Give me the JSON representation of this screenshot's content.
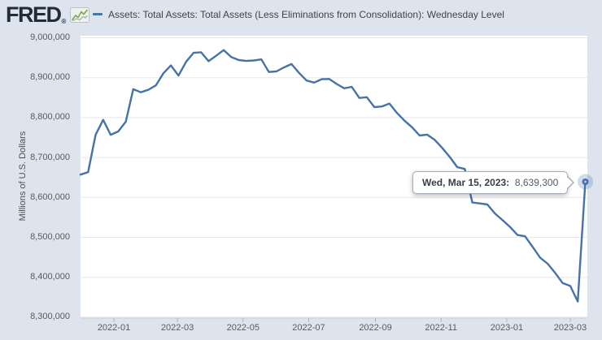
{
  "header": {
    "logo_text": "FRED",
    "registered_mark": "®",
    "series_title": "Assets: Total Assets: Total Assets (Less Eliminations from Consolidation): Wednesday Level"
  },
  "colors": {
    "background": "#dde4ee",
    "plot_background": "#ffffff",
    "series_line": "#4572a7",
    "gridline": "#e8e8e8",
    "axis_line": "#c9ced6",
    "tick": "#aeb6c0",
    "axis_text": "#565b63",
    "tooltip_border": "#a3adb8",
    "marker_halo": "rgba(69,114,167,0.25)",
    "logo_icon_green": "#7aab4e",
    "logo_icon_gray": "#9aa7b5"
  },
  "y_axis": {
    "title": "Millions of U.S. Dollars",
    "ticks": [
      "9,000,000",
      "8,900,000",
      "8,800,000",
      "8,700,000",
      "8,600,000",
      "8,500,000",
      "8,400,000",
      "8,300,000"
    ]
  },
  "x_axis": {
    "ticks": [
      "2022-01",
      "2022-03",
      "2022-05",
      "2022-07",
      "2022-09",
      "2022-11",
      "2023-01",
      "2023-03"
    ]
  },
  "tooltip": {
    "date_label": "Wed, Mar 15, 2023:",
    "value_label": "8,639,300"
  },
  "chart_data": {
    "type": "line",
    "title": "Assets: Total Assets: Total Assets (Less Eliminations from Consolidation): Wednesday Level",
    "xlabel": "",
    "ylabel": "Millions of U.S. Dollars",
    "ylim": [
      8300000,
      9000000
    ],
    "grid": true,
    "legend_position": "top",
    "frequency": "weekly, Wednesday level",
    "highlighted_point": {
      "date": "2023-03-15",
      "value": 8639300,
      "label": "Wed, Mar 15, 2023: 8,639,300"
    },
    "x": [
      "2021-12-01",
      "2021-12-08",
      "2021-12-15",
      "2021-12-22",
      "2021-12-29",
      "2022-01-05",
      "2022-01-12",
      "2022-01-19",
      "2022-01-26",
      "2022-02-02",
      "2022-02-09",
      "2022-02-16",
      "2022-02-23",
      "2022-03-02",
      "2022-03-09",
      "2022-03-16",
      "2022-03-23",
      "2022-03-30",
      "2022-04-06",
      "2022-04-13",
      "2022-04-20",
      "2022-04-27",
      "2022-05-04",
      "2022-05-11",
      "2022-05-18",
      "2022-05-25",
      "2022-06-01",
      "2022-06-08",
      "2022-06-15",
      "2022-06-22",
      "2022-06-29",
      "2022-07-06",
      "2022-07-13",
      "2022-07-20",
      "2022-07-27",
      "2022-08-03",
      "2022-08-10",
      "2022-08-17",
      "2022-08-24",
      "2022-08-31",
      "2022-09-07",
      "2022-09-14",
      "2022-09-21",
      "2022-09-28",
      "2022-10-05",
      "2022-10-12",
      "2022-10-19",
      "2022-10-26",
      "2022-11-02",
      "2022-11-09",
      "2022-11-16",
      "2022-11-23",
      "2022-11-30",
      "2022-12-07",
      "2022-12-14",
      "2022-12-21",
      "2022-12-28",
      "2023-01-04",
      "2023-01-11",
      "2023-01-18",
      "2023-01-25",
      "2023-02-01",
      "2023-02-08",
      "2023-02-15",
      "2023-02-22",
      "2023-03-01",
      "2023-03-08",
      "2023-03-15"
    ],
    "values": [
      8657200,
      8663500,
      8756800,
      8794300,
      8756900,
      8765200,
      8789700,
      8871100,
      8863400,
      8869800,
      8880700,
      8910900,
      8930700,
      8905000,
      8939700,
      8962100,
      8963600,
      8941200,
      8954800,
      8969100,
      8951600,
      8944200,
      8941800,
      8943100,
      8945800,
      8914200,
      8915700,
      8925600,
      8934100,
      8911900,
      8892800,
      8887600,
      8896200,
      8896700,
      8884100,
      8873300,
      8877000,
      8849200,
      8851100,
      8826300,
      8827900,
      8835200,
      8811600,
      8792300,
      8775800,
      8755100,
      8757300,
      8744400,
      8724100,
      8701500,
      8675900,
      8671300,
      8587200,
      8585000,
      8582300,
      8559800,
      8543400,
      8526200,
      8505900,
      8502700,
      8476300,
      8449100,
      8433900,
      8410700,
      8385400,
      8378200,
      8339300,
      8639300
    ]
  }
}
